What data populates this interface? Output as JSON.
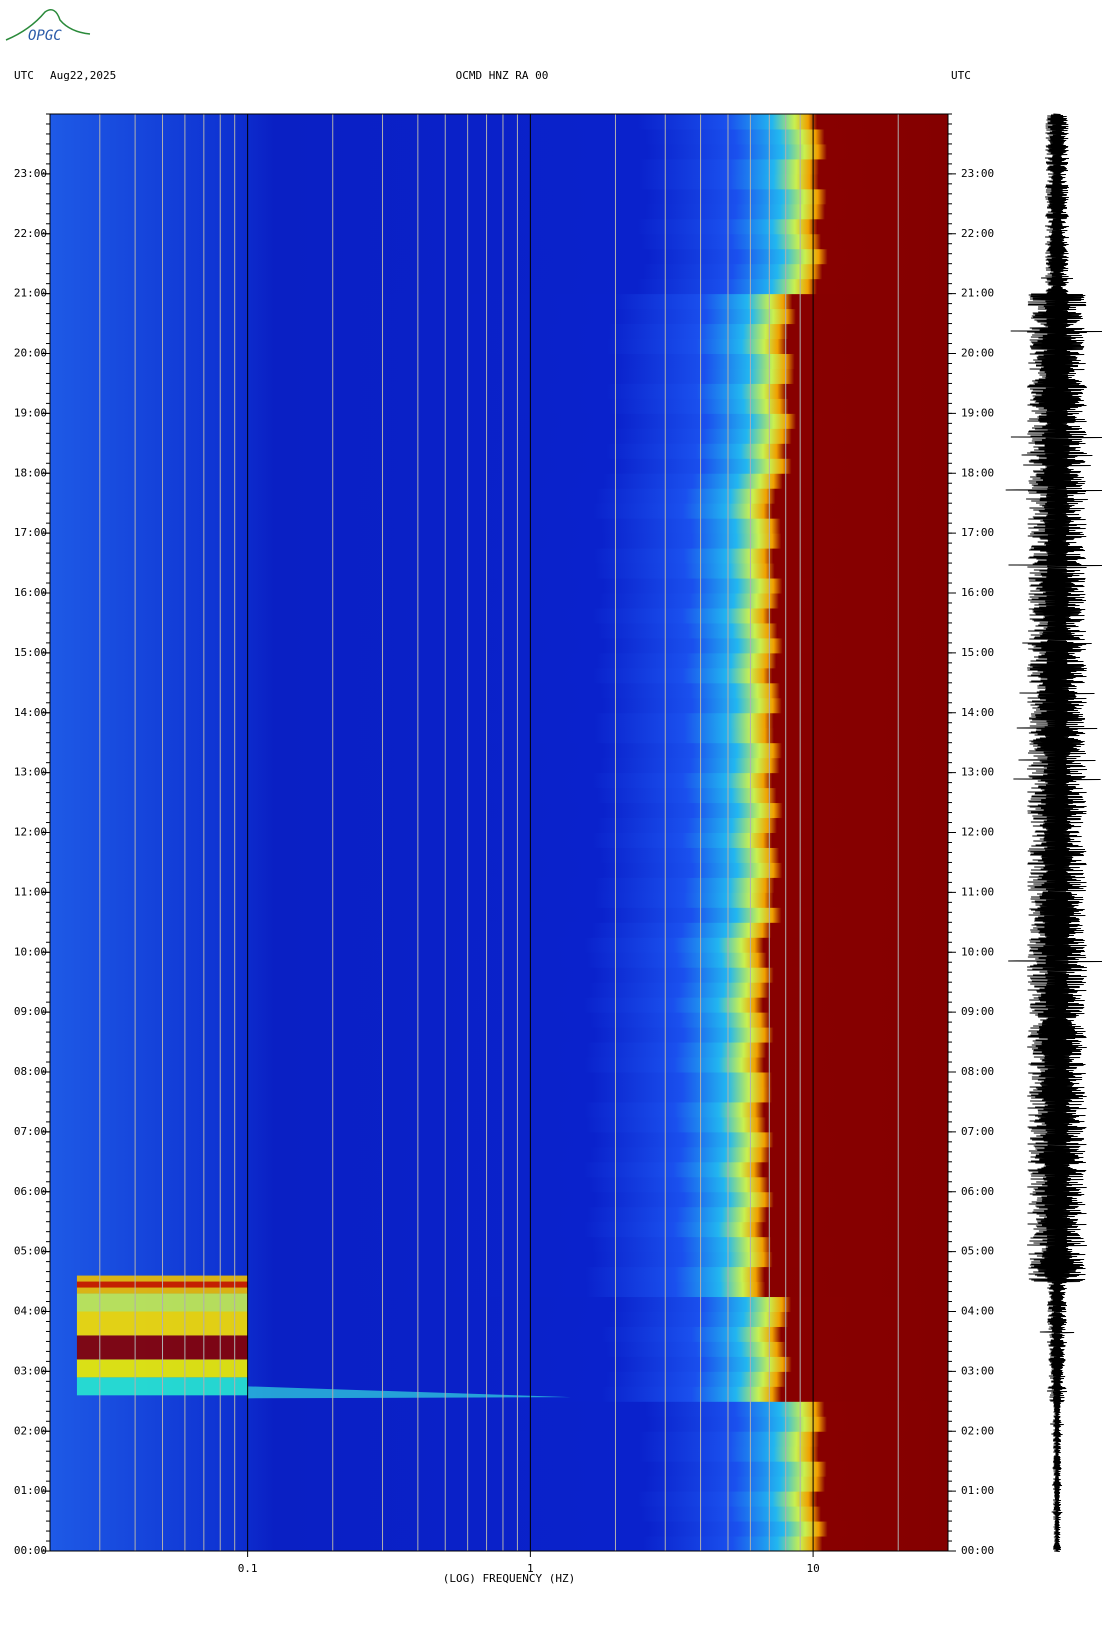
{
  "header": {
    "logo": "OPGC",
    "left_label": "UTC",
    "date": "Aug22,2025",
    "station": "OCMD HNZ RA 00",
    "right_label": "UTC"
  },
  "chart_data": {
    "type": "spectrogram",
    "x_label": "(LOG) FREQUENCY (HZ)",
    "xlog": true,
    "xlim": [
      0.02,
      30
    ],
    "xticks": [
      0.1,
      1,
      10
    ],
    "ylim": [
      0,
      24
    ],
    "yticks": [
      {
        "value": 0,
        "label": "00:00"
      },
      {
        "value": 1,
        "label": "01:00"
      },
      {
        "value": 2,
        "label": "02:00"
      },
      {
        "value": 3,
        "label": "03:00"
      },
      {
        "value": 4,
        "label": "04:00"
      },
      {
        "value": 5,
        "label": "05:00"
      },
      {
        "value": 6,
        "label": "06:00"
      },
      {
        "value": 7,
        "label": "07:00"
      },
      {
        "value": 8,
        "label": "08:00"
      },
      {
        "value": 9,
        "label": "09:00"
      },
      {
        "value": 10,
        "label": "10:00"
      },
      {
        "value": 11,
        "label": "11:00"
      },
      {
        "value": 12,
        "label": "12:00"
      },
      {
        "value": 13,
        "label": "13:00"
      },
      {
        "value": 14,
        "label": "14:00"
      },
      {
        "value": 15,
        "label": "15:00"
      },
      {
        "value": 16,
        "label": "16:00"
      },
      {
        "value": 17,
        "label": "17:00"
      },
      {
        "value": 18,
        "label": "18:00"
      },
      {
        "value": 19,
        "label": "19:00"
      },
      {
        "value": 20,
        "label": "20:00"
      },
      {
        "value": 21,
        "label": "21:00"
      },
      {
        "value": 22,
        "label": "22:00"
      },
      {
        "value": 23,
        "label": "23:00"
      }
    ]
  }
}
